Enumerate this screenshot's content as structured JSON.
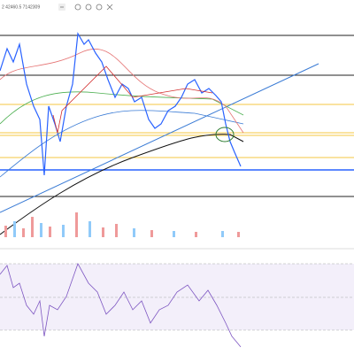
{
  "toolbar": {
    "legend": "2 42460.5 7142309"
  }
}
